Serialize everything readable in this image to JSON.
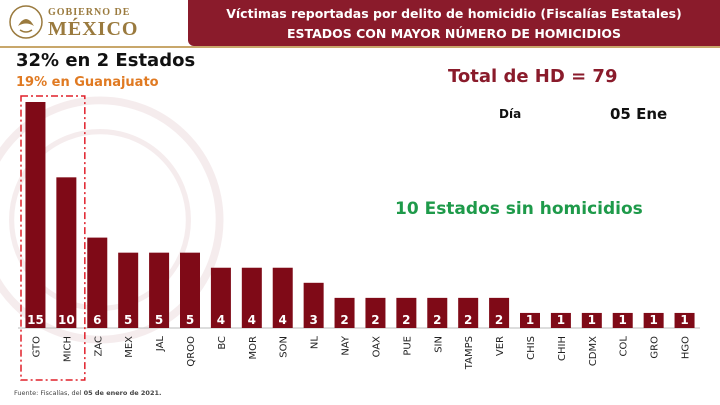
{
  "header": {
    "logo_line1": "GOBIERNO DE",
    "logo_line2": "MÉXICO",
    "title_line1": "Víctimas reportadas por delito de homicidio (Fiscalías Estatales)",
    "title_line2": "ESTADOS CON MAYOR NÚMERO DE HOMICIDIOS",
    "bar_color": "#8a1b2b",
    "gold_color": "#c8a76b"
  },
  "highlights": {
    "top_states": "32% en 2 Estados",
    "guanajuato": "19% en Guanajuato",
    "total": "Total de HD = 79",
    "day_label": "Día",
    "day_value": "05 Ene",
    "zero_states": "10 Estados sin homicidios"
  },
  "footer": {
    "source_prefix": "Fuente: Fiscalías, del ",
    "source_date": "05 de enero de 2021."
  },
  "colors": {
    "bar": "#7f0a17",
    "highlight_box": "#e0202a",
    "orange": "#e07a22",
    "green": "#1e9a4a"
  },
  "chart_data": {
    "type": "bar",
    "categories": [
      "GTO",
      "MICH",
      "ZAC",
      "MEX",
      "JAL",
      "QROO",
      "BC",
      "MOR",
      "SON",
      "NL",
      "NAY",
      "OAX",
      "PUE",
      "SIN",
      "TAMPS",
      "VER",
      "CHIS",
      "CHIH",
      "CDMX",
      "COL",
      "GRO",
      "HGO"
    ],
    "values": [
      15,
      10,
      6,
      5,
      5,
      5,
      4,
      4,
      4,
      3,
      2,
      2,
      2,
      2,
      2,
      2,
      1,
      1,
      1,
      1,
      1,
      1
    ],
    "data_labels": [
      "15",
      "10",
      "6",
      "5",
      "5",
      "5",
      "4",
      "4",
      "4",
      "3",
      "2",
      "2",
      "2",
      "2",
      "2",
      "2",
      "1",
      "1",
      "1",
      "1",
      "1",
      "1"
    ],
    "highlighted_categories": [
      "GTO",
      "MICH"
    ],
    "title": "",
    "xlabel": "",
    "ylabel": "",
    "ylim": [
      0,
      15
    ],
    "grid": false,
    "legend": "none"
  }
}
